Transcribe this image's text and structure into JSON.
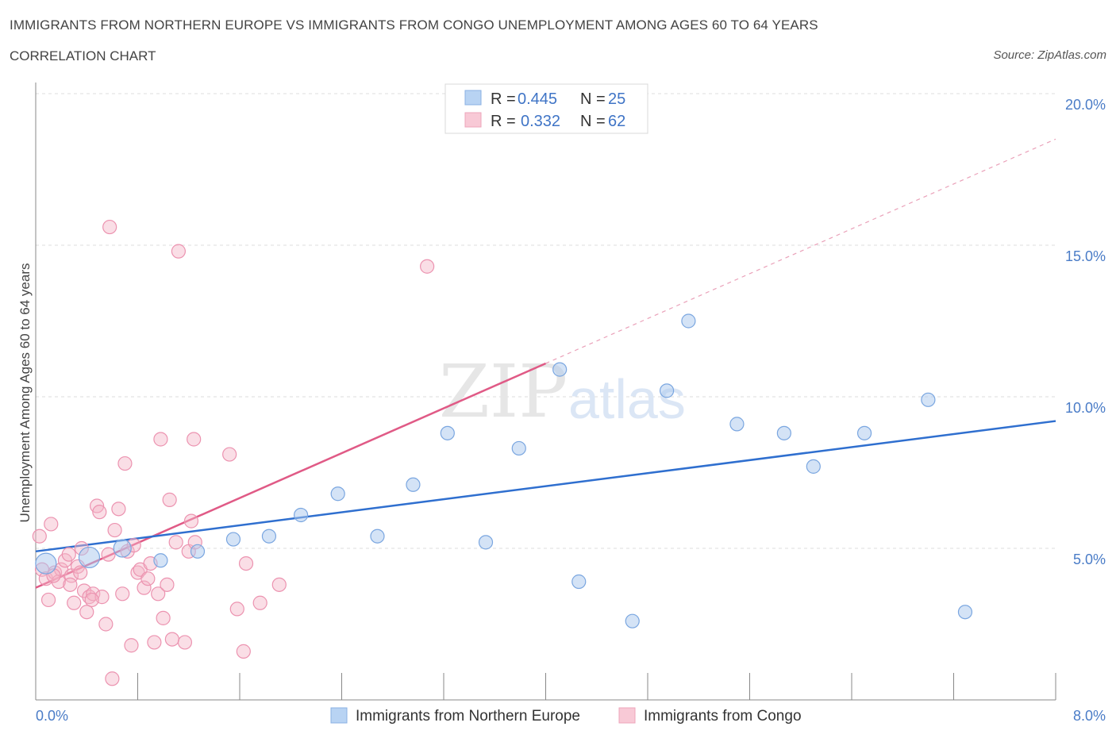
{
  "header": {
    "title": "IMMIGRANTS FROM NORTHERN EUROPE VS IMMIGRANTS FROM CONGO UNEMPLOYMENT AMONG AGES 60 TO 64 YEARS",
    "subtitle": "CORRELATION CHART",
    "source": "Source: ZipAtlas.com"
  },
  "watermark": {
    "zip": "ZIP",
    "atlas": "atlas"
  },
  "legend_box": {
    "rows": [
      {
        "r_label": "R = ",
        "r_value": "0.445",
        "n_label": "N = ",
        "n_value": "25"
      },
      {
        "r_label": "R = ",
        "r_value": "0.332",
        "n_label": "N = ",
        "n_value": "62"
      }
    ]
  },
  "chart_data": {
    "type": "scatter",
    "title": "IMMIGRANTS FROM NORTHERN EUROPE VS IMMIGRANTS FROM CONGO UNEMPLOYMENT AMONG AGES 60 TO 64 YEARS",
    "subtitle": "CORRELATION CHART",
    "xlabel": "",
    "ylabel": "Unemployment Among Ages 60 to 64 years",
    "xlim": [
      0,
      8
    ],
    "ylim": [
      0,
      20
    ],
    "x_tick_labels": [
      "0.0%",
      "8.0%"
    ],
    "y_tick_labels": [
      "5.0%",
      "10.0%",
      "15.0%",
      "20.0%"
    ],
    "y_ticks": [
      5,
      10,
      15,
      20
    ],
    "grid": true,
    "legend_position": "bottom",
    "colors": {
      "blue": "#a9c7ee",
      "blue_line": "#2f6fcf",
      "pink": "#f4b6c8",
      "pink_line": "#e05a86"
    },
    "series": [
      {
        "name": "Immigrants from Northern Europe",
        "color": "#a9c7ee",
        "points": [
          [
            0.08,
            4.5
          ],
          [
            0.42,
            4.7
          ],
          [
            0.68,
            5.0
          ],
          [
            0.98,
            4.6
          ],
          [
            1.27,
            4.9
          ],
          [
            1.55,
            5.3
          ],
          [
            1.83,
            5.4
          ],
          [
            2.08,
            6.1
          ],
          [
            2.37,
            6.8
          ],
          [
            2.68,
            5.4
          ],
          [
            2.96,
            7.1
          ],
          [
            3.23,
            8.8
          ],
          [
            3.53,
            5.2
          ],
          [
            3.79,
            8.3
          ],
          [
            4.11,
            10.9
          ],
          [
            4.26,
            3.9
          ],
          [
            4.68,
            2.6
          ],
          [
            4.95,
            10.2
          ],
          [
            5.12,
            12.5
          ],
          [
            5.5,
            9.1
          ],
          [
            5.87,
            8.8
          ],
          [
            6.1,
            7.7
          ],
          [
            6.5,
            8.8
          ],
          [
            7.0,
            9.9
          ],
          [
            7.29,
            2.9
          ]
        ],
        "trend": {
          "x": [
            0,
            8
          ],
          "y": [
            4.9,
            9.2
          ]
        }
      },
      {
        "name": "Immigrants from Congo",
        "color": "#f4b6c8",
        "points": [
          [
            0.03,
            5.4
          ],
          [
            0.05,
            4.3
          ],
          [
            0.08,
            4.0
          ],
          [
            0.1,
            3.3
          ],
          [
            0.12,
            5.8
          ],
          [
            0.15,
            4.2
          ],
          [
            0.18,
            3.9
          ],
          [
            0.2,
            4.3
          ],
          [
            0.23,
            4.6
          ],
          [
            0.26,
            4.8
          ],
          [
            0.28,
            4.1
          ],
          [
            0.3,
            3.2
          ],
          [
            0.33,
            4.4
          ],
          [
            0.36,
            5.0
          ],
          [
            0.38,
            3.6
          ],
          [
            0.4,
            2.9
          ],
          [
            0.42,
            3.4
          ],
          [
            0.45,
            3.5
          ],
          [
            0.48,
            6.4
          ],
          [
            0.5,
            6.2
          ],
          [
            0.52,
            3.4
          ],
          [
            0.55,
            2.5
          ],
          [
            0.58,
            15.6
          ],
          [
            0.6,
            0.7
          ],
          [
            0.62,
            5.6
          ],
          [
            0.65,
            6.3
          ],
          [
            0.68,
            3.5
          ],
          [
            0.7,
            7.8
          ],
          [
            0.72,
            4.9
          ],
          [
            0.75,
            1.8
          ],
          [
            0.77,
            5.1
          ],
          [
            0.8,
            4.2
          ],
          [
            0.82,
            4.3
          ],
          [
            0.85,
            3.7
          ],
          [
            0.88,
            4.0
          ],
          [
            0.9,
            4.5
          ],
          [
            0.93,
            1.9
          ],
          [
            0.96,
            3.5
          ],
          [
            0.98,
            8.6
          ],
          [
            1.0,
            2.7
          ],
          [
            1.03,
            3.8
          ],
          [
            1.05,
            6.6
          ],
          [
            1.07,
            2.0
          ],
          [
            1.1,
            5.2
          ],
          [
            1.12,
            14.8
          ],
          [
            1.17,
            1.9
          ],
          [
            1.2,
            4.9
          ],
          [
            1.22,
            5.9
          ],
          [
            1.24,
            8.6
          ],
          [
            1.25,
            5.2
          ],
          [
            1.52,
            8.1
          ],
          [
            1.58,
            3.0
          ],
          [
            1.63,
            1.6
          ],
          [
            1.65,
            4.5
          ],
          [
            1.76,
            3.2
          ],
          [
            1.91,
            3.8
          ],
          [
            3.07,
            14.3
          ],
          [
            0.14,
            4.1
          ],
          [
            0.27,
            3.8
          ],
          [
            0.35,
            4.2
          ],
          [
            0.44,
            3.3
          ],
          [
            0.57,
            4.8
          ]
        ],
        "trend": {
          "x": [
            0,
            4.0
          ],
          "y": [
            3.7,
            11.1
          ]
        },
        "trend_extension": {
          "x": [
            4.0,
            8.0
          ],
          "y": [
            11.1,
            18.5
          ]
        }
      }
    ]
  }
}
